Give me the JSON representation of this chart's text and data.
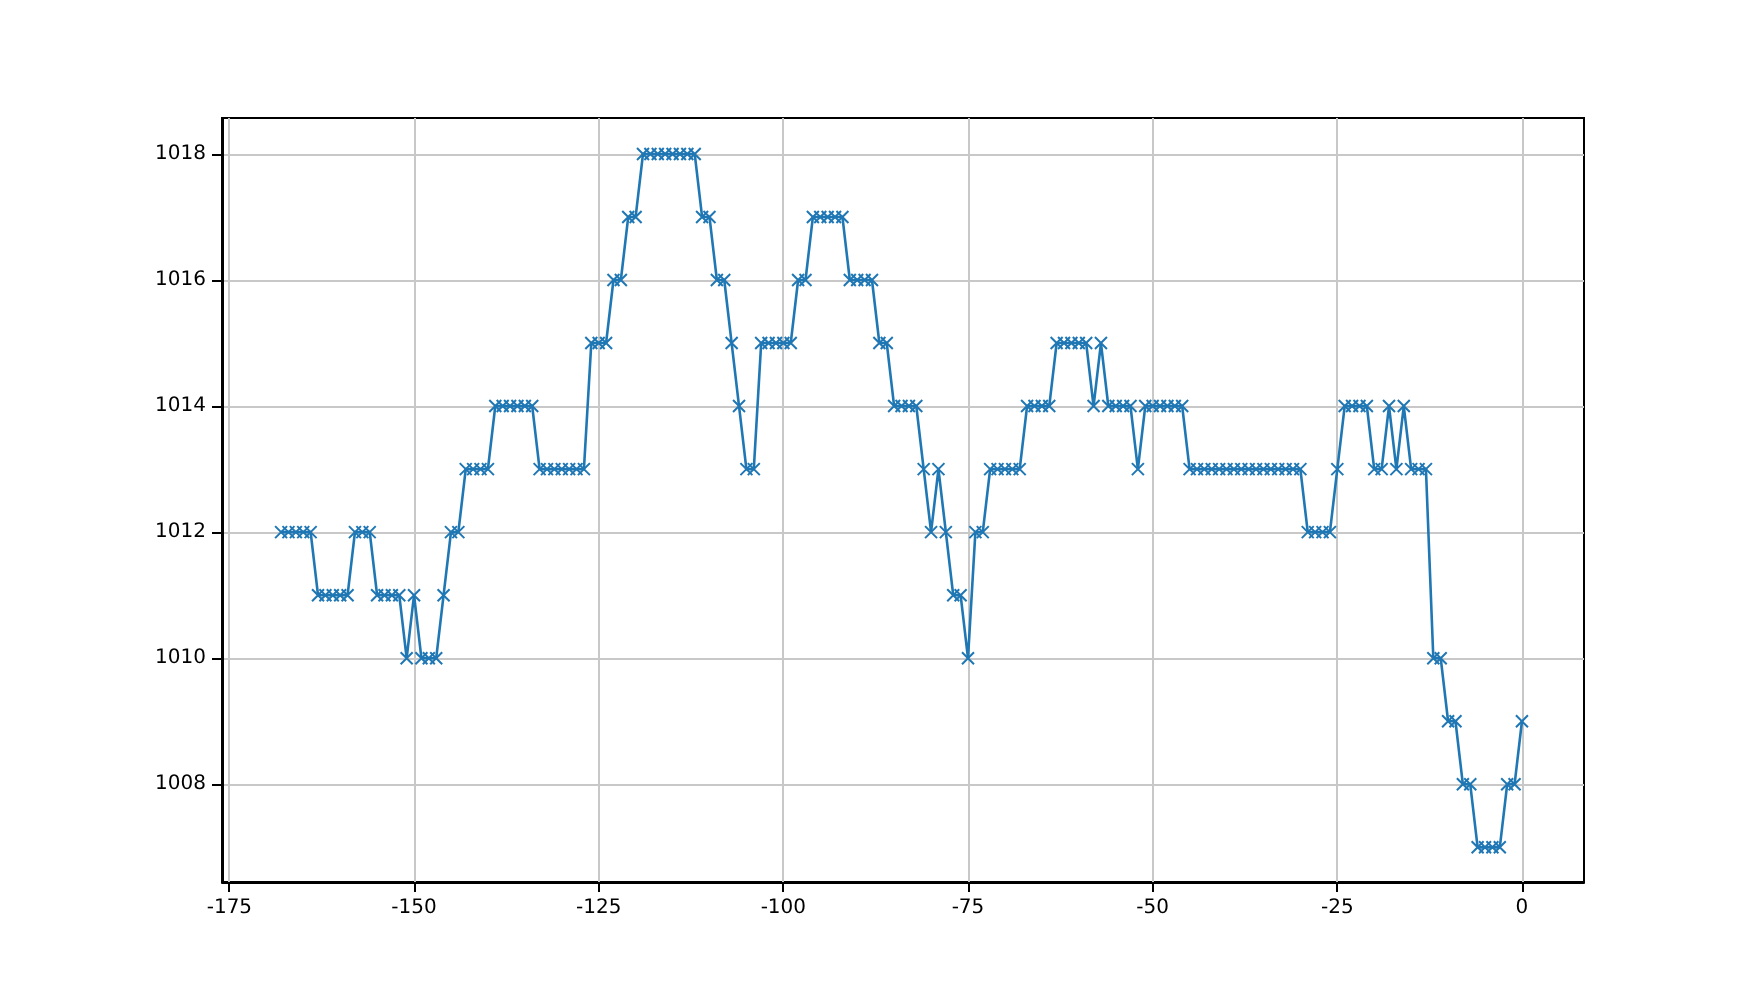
{
  "chart_data": {
    "type": "line",
    "x": [
      -168,
      -167,
      -166,
      -165,
      -164,
      -163,
      -162,
      -161,
      -160,
      -159,
      -158,
      -157,
      -156,
      -155,
      -154,
      -153,
      -152,
      -151,
      -150,
      -149,
      -148,
      -147,
      -146,
      -145,
      -144,
      -143,
      -142,
      -141,
      -140,
      -139,
      -138,
      -137,
      -136,
      -135,
      -134,
      -133,
      -132,
      -131,
      -130,
      -129,
      -128,
      -127,
      -126,
      -125,
      -124,
      -123,
      -122,
      -121,
      -120,
      -119,
      -118,
      -117,
      -116,
      -115,
      -114,
      -113,
      -112,
      -111,
      -110,
      -109,
      -108,
      -107,
      -106,
      -105,
      -104,
      -103,
      -102,
      -101,
      -100,
      -99,
      -98,
      -97,
      -96,
      -95,
      -94,
      -93,
      -92,
      -91,
      -90,
      -89,
      -88,
      -87,
      -86,
      -85,
      -84,
      -83,
      -82,
      -81,
      -80,
      -79,
      -78,
      -77,
      -76,
      -75,
      -74,
      -73,
      -72,
      -71,
      -70,
      -69,
      -68,
      -67,
      -66,
      -65,
      -64,
      -63,
      -62,
      -61,
      -60,
      -59,
      -58,
      -57,
      -56,
      -55,
      -54,
      -53,
      -52,
      -51,
      -50,
      -49,
      -48,
      -47,
      -46,
      -45,
      -44,
      -43,
      -42,
      -41,
      -40,
      -39,
      -38,
      -37,
      -36,
      -35,
      -34,
      -33,
      -32,
      -31,
      -30,
      -29,
      -28,
      -27,
      -26,
      -25,
      -24,
      -23,
      -22,
      -21,
      -20,
      -19,
      -18,
      -17,
      -16,
      -15,
      -14,
      -13,
      -12,
      -11,
      -10,
      -9,
      -8,
      -7,
      -6,
      -5,
      -4,
      -3,
      -2,
      -1,
      0
    ],
    "series": [
      {
        "color": "#1f77b4",
        "values": [
          1012,
          1012,
          1012,
          1012,
          1012,
          1011,
          1011,
          1011,
          1011,
          1011,
          1012,
          1012,
          1012,
          1011,
          1011,
          1011,
          1011,
          1010,
          1011,
          1010,
          1010,
          1010,
          1011,
          1012,
          1012,
          1013,
          1013,
          1013,
          1013,
          1014,
          1014,
          1014,
          1014,
          1014,
          1014,
          1013,
          1013,
          1013,
          1013,
          1013,
          1013,
          1013,
          1015,
          1015,
          1015,
          1016,
          1016,
          1017,
          1017,
          1018,
          1018,
          1018,
          1018,
          1018,
          1018,
          1018,
          1018,
          1017,
          1017,
          1016,
          1016,
          1015,
          1014,
          1013,
          1013,
          1015,
          1015,
          1015,
          1015,
          1015,
          1016,
          1016,
          1017,
          1017,
          1017,
          1017,
          1017,
          1016,
          1016,
          1016,
          1016,
          1015,
          1015,
          1014,
          1014,
          1014,
          1014,
          1013,
          1012,
          1013,
          1012,
          1011,
          1011,
          1010,
          1012,
          1012,
          1013,
          1013,
          1013,
          1013,
          1013,
          1014,
          1014,
          1014,
          1014,
          1015,
          1015,
          1015,
          1015,
          1015,
          1014,
          1015,
          1014,
          1014,
          1014,
          1014,
          1013,
          1014,
          1014,
          1014,
          1014,
          1014,
          1014,
          1013,
          1013,
          1013,
          1013,
          1013,
          1013,
          1013,
          1013,
          1013,
          1013,
          1013,
          1013,
          1013,
          1013,
          1013,
          1013,
          1012,
          1012,
          1012,
          1012,
          1013,
          1014,
          1014,
          1014,
          1014,
          1013,
          1013,
          1014,
          1013,
          1014,
          1013,
          1013,
          1013,
          1010,
          1010,
          1009,
          1009,
          1008,
          1008,
          1007,
          1007,
          1007,
          1007,
          1008,
          1008,
          1009
        ]
      }
    ],
    "xlim": [
      -176,
      8.4
    ],
    "ylim": [
      1006.45,
      1018.57
    ],
    "xticks": [
      -175,
      -150,
      -125,
      -100,
      -75,
      -50,
      -25,
      0
    ],
    "yticks": [
      1008,
      1010,
      1012,
      1014,
      1016,
      1018
    ],
    "grid": true,
    "marker": "cross",
    "line_style": "solid"
  }
}
